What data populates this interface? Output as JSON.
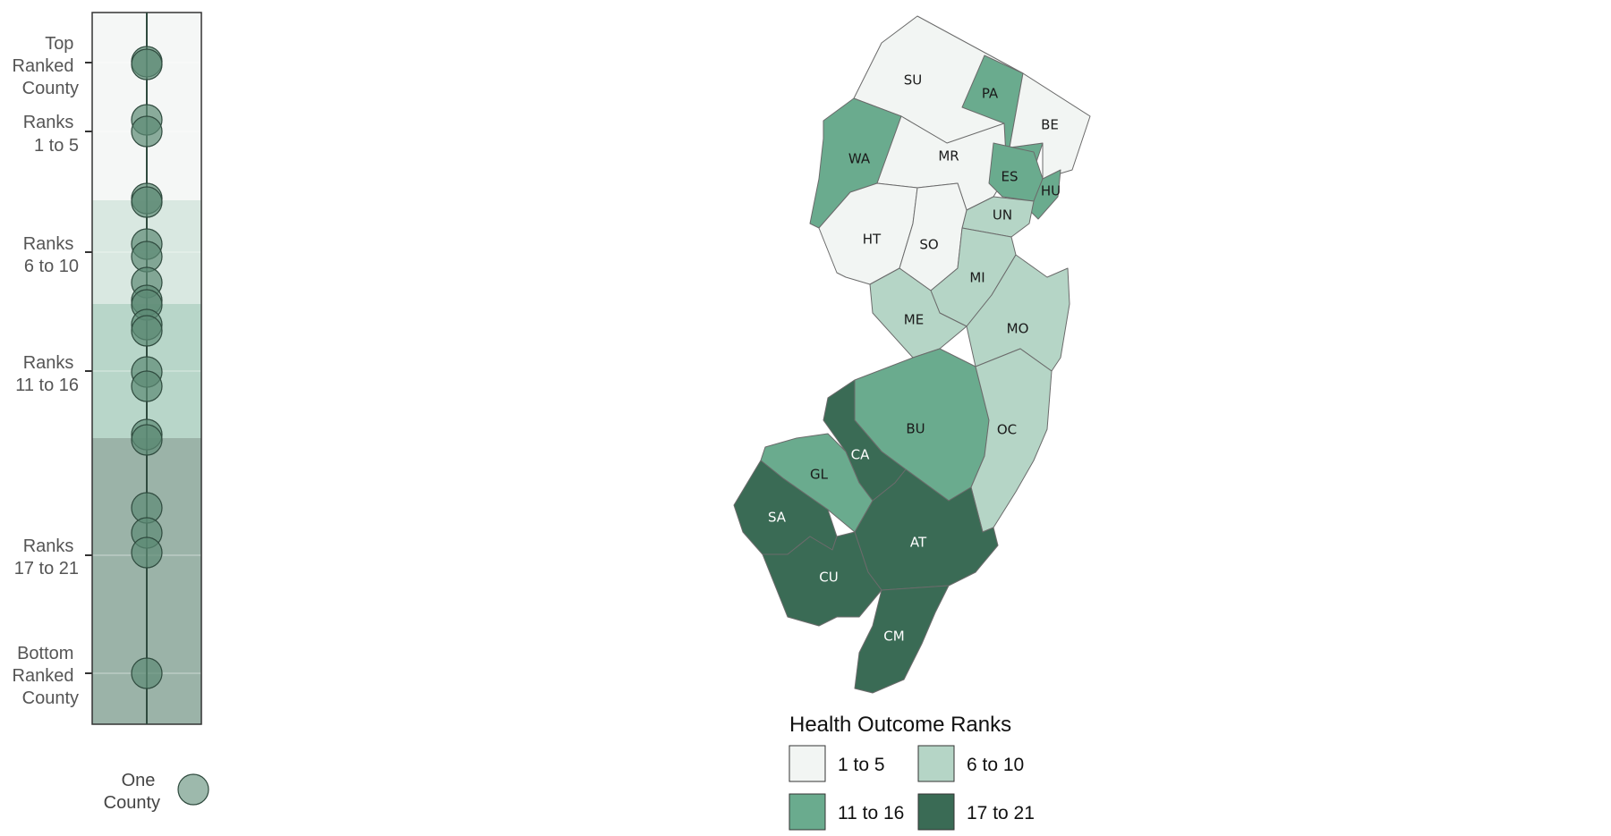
{
  "colors": {
    "rank_1_5": "#f2f5f3",
    "rank_6_10": "#b5d5c6",
    "rank_11_16": "#6aab8e",
    "rank_17_21": "#3a6b55",
    "dot_fill": "#5c8a75",
    "strip_band_1_5": "#f5f7f6",
    "strip_band_6_10": "#d9e8e1",
    "strip_band_11_16": "#b8d6c9",
    "strip_band_17_21": "#9bb3a8"
  },
  "rank_strip": {
    "labels": {
      "top": [
        "Top",
        "Ranked",
        "County"
      ],
      "r1_5": [
        "Ranks",
        "1 to 5"
      ],
      "r6_10": [
        "Ranks",
        "6 to 10"
      ],
      "r11_16": [
        "Ranks",
        "11 to 16"
      ],
      "r17_21": [
        "Ranks",
        "17 to 21"
      ],
      "bottom": [
        "Bottom",
        "Ranked",
        "County"
      ]
    },
    "one_county_label": [
      "One",
      "County"
    ]
  },
  "counties": [
    {
      "abbr": "SU",
      "group": "1 to 5"
    },
    {
      "abbr": "PA",
      "group": "11 to 16"
    },
    {
      "abbr": "BE",
      "group": "1 to 5"
    },
    {
      "abbr": "WA",
      "group": "11 to 16"
    },
    {
      "abbr": "MR",
      "group": "1 to 5"
    },
    {
      "abbr": "ES",
      "group": "11 to 16"
    },
    {
      "abbr": "HU",
      "group": "11 to 16"
    },
    {
      "abbr": "UN",
      "group": "6 to 10"
    },
    {
      "abbr": "HT",
      "group": "1 to 5"
    },
    {
      "abbr": "SO",
      "group": "1 to 5"
    },
    {
      "abbr": "MI",
      "group": "6 to 10"
    },
    {
      "abbr": "ME",
      "group": "6 to 10"
    },
    {
      "abbr": "MO",
      "group": "6 to 10"
    },
    {
      "abbr": "BU",
      "group": "11 to 16"
    },
    {
      "abbr": "OC",
      "group": "6 to 10"
    },
    {
      "abbr": "CA",
      "group": "17 to 21"
    },
    {
      "abbr": "GL",
      "group": "11 to 16"
    },
    {
      "abbr": "SA",
      "group": "17 to 21"
    },
    {
      "abbr": "AT",
      "group": "17 to 21"
    },
    {
      "abbr": "CU",
      "group": "17 to 21"
    },
    {
      "abbr": "CM",
      "group": "17 to 21"
    }
  ],
  "legend": {
    "title": "Health Outcome Ranks",
    "items": [
      "1 to 5",
      "6 to 10",
      "11 to 16",
      "17 to 21"
    ]
  }
}
